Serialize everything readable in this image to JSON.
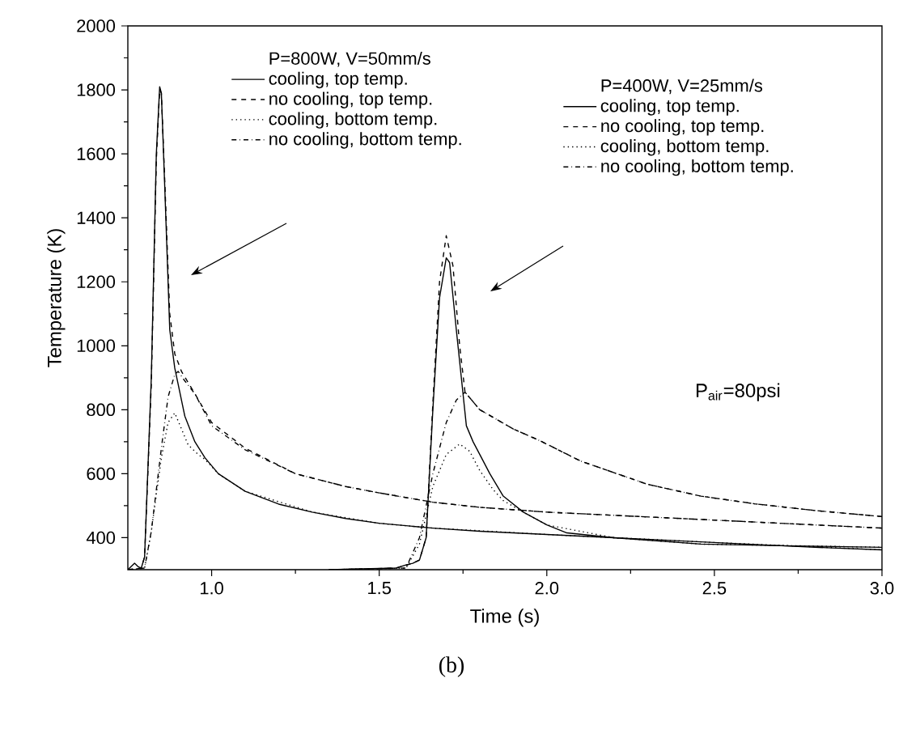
{
  "chart_data": {
    "type": "line",
    "xlabel": "Time (s)",
    "ylabel": "Temperature (K)",
    "xlim": [
      0.75,
      3.0
    ],
    "ylim": [
      300,
      2000
    ],
    "xticks": [
      {
        "value": 1.0,
        "label": "1.0"
      },
      {
        "value": 1.5,
        "label": "1.5"
      },
      {
        "value": 2.0,
        "label": "2.0"
      },
      {
        "value": 2.5,
        "label": "2.5"
      },
      {
        "value": 3.0,
        "label": "3.0"
      }
    ],
    "yticks": [
      400,
      600,
      800,
      1000,
      1200,
      1400,
      1600,
      1800,
      2000
    ],
    "grid": false,
    "legend": "top",
    "marker": "none",
    "annotations": [
      "P=800W, V=50mm/s",
      "P=400W, V=25mm/s",
      "P$_{air}$=80psi",
      "(b)"
    ],
    "series": [
      {
        "name": "cooling, top temp.",
        "color": "#000000",
        "line_style": "solid",
        "x": [
          0.75,
          0.76,
          0.77,
          0.78,
          0.79,
          0.8,
          0.82,
          0.835,
          0.845,
          0.85,
          0.86,
          0.875,
          0.89,
          0.9,
          0.92,
          0.95,
          0.98,
          1.02,
          1.1,
          1.2,
          1.3,
          1.4,
          1.5,
          1.66,
          1.8,
          2.0,
          2.2,
          2.5,
          2.8,
          3.0
        ],
        "values": [
          300,
          310,
          320,
          310,
          305,
          340,
          900,
          1600,
          1810,
          1790,
          1500,
          1050,
          930,
          880,
          780,
          700,
          650,
          600,
          545,
          505,
          480,
          460,
          445,
          430,
          420,
          410,
          400,
          385,
          370,
          362
        ]
      },
      {
        "name": "no cooling, top temp.",
        "color": "#000000",
        "line_style": "dashed",
        "x": [
          0.75,
          0.79,
          0.8,
          0.82,
          0.835,
          0.845,
          0.85,
          0.86,
          0.875,
          0.89,
          0.91,
          0.95,
          1.0,
          1.1,
          1.25,
          1.4,
          1.5,
          1.66,
          1.8,
          2.0,
          2.3,
          2.6,
          3.0
        ],
        "values": [
          300,
          305,
          340,
          880,
          1580,
          1800,
          1790,
          1520,
          1100,
          975,
          920,
          850,
          760,
          680,
          600,
          560,
          540,
          511,
          495,
          480,
          465,
          450,
          430
        ]
      },
      {
        "name": "cooling, bottom temp.",
        "color": "#000000",
        "line_style": "dotted",
        "x": [
          0.75,
          0.8,
          0.82,
          0.85,
          0.87,
          0.89,
          0.91,
          0.93,
          0.96,
          0.98,
          1.02,
          1.1,
          1.3,
          1.5,
          1.66,
          2.0,
          2.5,
          3.0
        ],
        "values": [
          300,
          305,
          420,
          650,
          760,
          790,
          740,
          690,
          660,
          645,
          600,
          545,
          480,
          445,
          430,
          410,
          385,
          362
        ]
      },
      {
        "name": "no cooling, bottom temp.",
        "color": "#000000",
        "line_style": "dashdot",
        "x": [
          0.75,
          0.8,
          0.82,
          0.85,
          0.87,
          0.89,
          0.9,
          0.92,
          0.95,
          1.0,
          1.1,
          1.25,
          1.4,
          1.5,
          1.66,
          1.8,
          2.0,
          2.3,
          2.6,
          3.0
        ],
        "values": [
          300,
          305,
          420,
          680,
          840,
          910,
          920,
          890,
          850,
          750,
          675,
          600,
          560,
          540,
          511,
          495,
          480,
          465,
          450,
          430
        ]
      },
      {
        "name": "cooling, top temp.",
        "color": "#000000",
        "line_style": "solid",
        "x": [
          1.35,
          1.55,
          1.58,
          1.6,
          1.62,
          1.64,
          1.66,
          1.68,
          1.7,
          1.71,
          1.73,
          1.76,
          1.78,
          1.8,
          1.83,
          1.87,
          1.93,
          2.0,
          2.06,
          2.2,
          2.46,
          2.7,
          3.0
        ],
        "values": [
          300,
          305,
          315,
          320,
          330,
          400,
          800,
          1150,
          1275,
          1260,
          1050,
          750,
          700,
          660,
          600,
          530,
          480,
          440,
          415,
          400,
          380,
          375,
          370
        ]
      },
      {
        "name": "no cooling, top temp.",
        "color": "#000000",
        "line_style": "dashed",
        "x": [
          1.35,
          1.55,
          1.6,
          1.62,
          1.64,
          1.66,
          1.68,
          1.7,
          1.72,
          1.74,
          1.756,
          1.8,
          1.9,
          1.98,
          2.1,
          2.3,
          2.46,
          2.62,
          2.8,
          3.0
        ],
        "values": [
          300,
          305,
          320,
          330,
          400,
          820,
          1200,
          1344,
          1250,
          1000,
          855,
          800,
          740,
          703,
          640,
          567,
          530,
          506,
          485,
          466
        ]
      },
      {
        "name": "cooling, bottom temp.",
        "color": "#000000",
        "line_style": "dotted",
        "x": [
          1.35,
          1.58,
          1.62,
          1.66,
          1.7,
          1.74,
          1.77,
          1.8,
          1.84,
          1.87,
          1.93,
          2.0,
          2.2,
          2.46,
          3.0
        ],
        "values": [
          300,
          305,
          380,
          560,
          660,
          693,
          670,
          610,
          550,
          516,
          480,
          440,
          400,
          380,
          370
        ]
      },
      {
        "name": "no cooling, bottom temp.",
        "color": "#000000",
        "line_style": "dashdot",
        "x": [
          1.35,
          1.58,
          1.62,
          1.66,
          1.7,
          1.73,
          1.756,
          1.8,
          1.9,
          1.98,
          2.1,
          2.3,
          2.46,
          2.62,
          2.8,
          3.0
        ],
        "values": [
          300,
          305,
          400,
          600,
          760,
          830,
          855,
          800,
          740,
          703,
          640,
          567,
          530,
          506,
          485,
          466
        ]
      }
    ]
  }
}
